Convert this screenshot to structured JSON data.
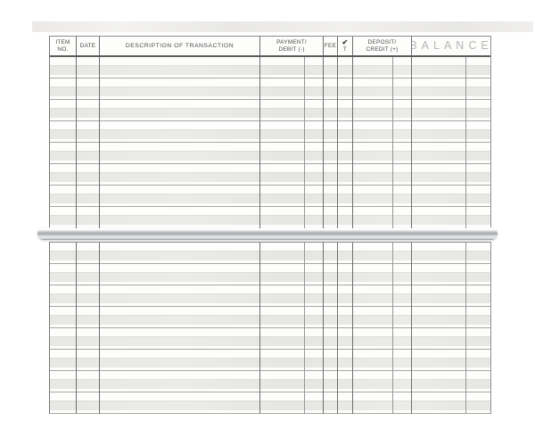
{
  "register": {
    "columns": [
      {
        "id": "item",
        "label_lines": [
          "ITEM",
          "NO."
        ]
      },
      {
        "id": "date",
        "label_lines": [
          "DATE"
        ]
      },
      {
        "id": "description",
        "label_lines": [
          "DESCRIPTION OF TRANSACTION"
        ]
      },
      {
        "id": "payment",
        "label_lines": [
          "PAYMENT/",
          "DEBIT (-)"
        ]
      },
      {
        "id": "fee",
        "label_lines": [
          "FEE"
        ]
      },
      {
        "id": "check",
        "label_lines": [
          "✔",
          "T"
        ]
      },
      {
        "id": "deposit",
        "label_lines": [
          "DEPOSIT/",
          "CREDIT (+)"
        ]
      },
      {
        "id": "balance",
        "label_lines": [
          "BALANCE"
        ]
      }
    ],
    "top_section": {
      "row_count": 8,
      "has_header": true
    },
    "bottom_section": {
      "row_count": 8,
      "has_header": false
    },
    "all_cells_blank": true
  },
  "icons": {
    "check-icon": "✔"
  },
  "colors": {
    "paper": "#fdfdfc",
    "row_shading": "#ebebe8",
    "column_line": "#6e6e6e",
    "cents_line": "#979797",
    "row_line": "#a6a6a6",
    "header_text": "#4e4e4e",
    "balance_header_text": "#b6b6b6",
    "binding_bar_silver": "#a3a6a8"
  }
}
